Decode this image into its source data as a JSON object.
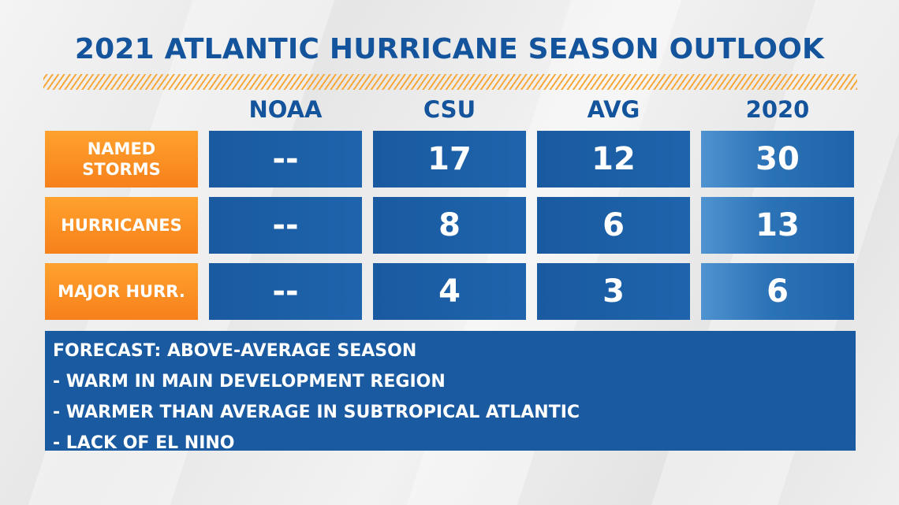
{
  "title": "2021 ATLANTIC HURRICANE SEASON OUTLOOK",
  "chart_data": {
    "type": "table",
    "title": "2021 ATLANTIC HURRICANE SEASON OUTLOOK",
    "columns": [
      "NOAA",
      "CSU",
      "AVG",
      "2020"
    ],
    "rows": [
      {
        "label": "NAMED STORMS",
        "values": [
          "--",
          "17",
          "12",
          "30"
        ]
      },
      {
        "label": "HURRICANES",
        "values": [
          "--",
          "8",
          "6",
          "13"
        ]
      },
      {
        "label": "MAJOR HURR.",
        "values": [
          "--",
          "4",
          "3",
          "6"
        ]
      }
    ]
  },
  "notes": {
    "heading": "FORECAST: ABOVE-AVERAGE SEASON",
    "items": [
      "- WARM IN MAIN DEVELOPMENT REGION",
      "- WARMER THAN AVERAGE IN SUBTROPICAL ATLANTIC",
      "- LACK OF EL NINO"
    ]
  },
  "colors": {
    "title": "#14549c",
    "cell_blue": "#1a5aa0",
    "label_orange": "#f7801b",
    "hatch_orange": "#f6a93a"
  }
}
